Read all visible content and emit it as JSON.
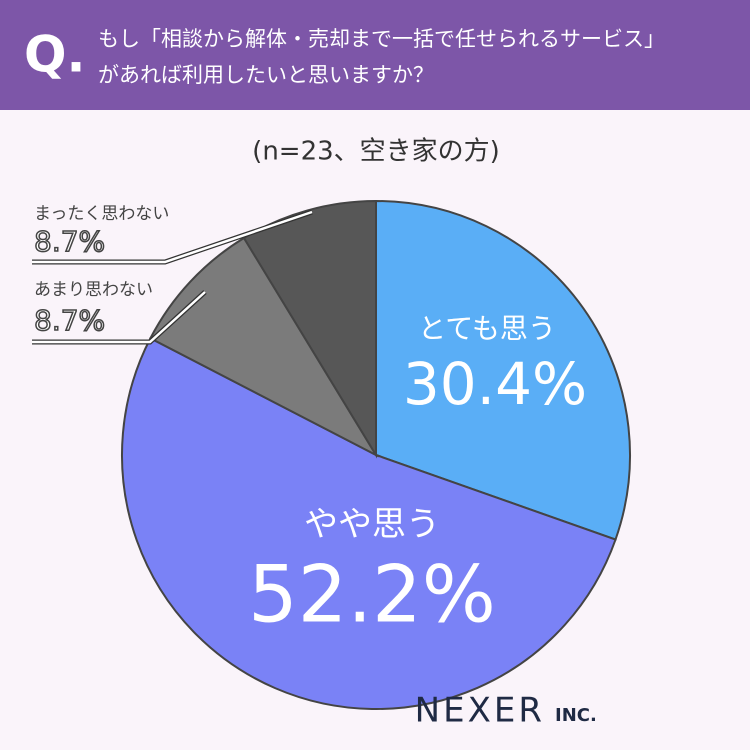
{
  "chart_data": {
    "type": "pie",
    "question_mark": "Q.",
    "title": [
      "もし「相談から解体・売却まで一括で任せられるサービス」",
      "があれば利用したいと思いますか？"
    ],
    "subtitle": "(n=23、空き家の方)",
    "categories": [
      "とても思う",
      "やや思う",
      "あまり思わない",
      "まったく思わない"
    ],
    "values": [
      30.4,
      52.2,
      8.7,
      8.7
    ],
    "value_labels": [
      "30.4%",
      "52.2%",
      "8.7%",
      "8.7%"
    ],
    "colors": [
      "#5aaef6",
      "#7a82f6",
      "#7b7b7b",
      "#575757"
    ],
    "logo": [
      "NEXER",
      "INC."
    ]
  }
}
